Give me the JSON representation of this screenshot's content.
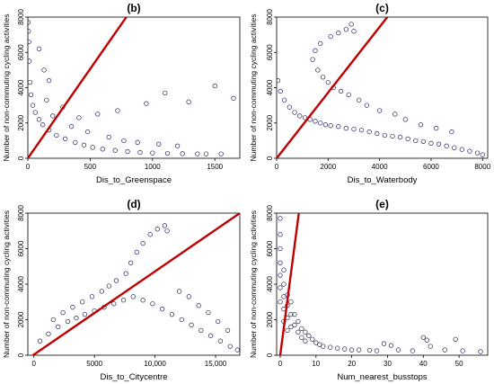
{
  "chart_data": [
    {
      "type": "scatter",
      "title": "(b)",
      "xlabel": "Dis_to_Greenspace",
      "ylabel": "Number of non-commuting cycling activities",
      "xlim": [
        0,
        1700
      ],
      "ylim": [
        0,
        8000
      ],
      "xticks": [
        0,
        500,
        1000,
        1500
      ],
      "xtick_labels": [
        "0",
        "500",
        "1000",
        "1500"
      ],
      "yticks": [
        0,
        2000,
        4000,
        6000,
        8000
      ],
      "ytick_labels": [
        "0",
        "2000",
        "4000",
        "6000",
        "8000"
      ],
      "grid": false,
      "series_color": "#1f1fd6",
      "point_edge_color": "#20205a",
      "trendline": {
        "color": "#c00000",
        "x": [
          0,
          790
        ],
        "y": [
          0,
          8000
        ]
      },
      "points": [
        [
          3,
          7700
        ],
        [
          5,
          7200
        ],
        [
          8,
          6600
        ],
        [
          12,
          5500
        ],
        [
          18,
          4300
        ],
        [
          25,
          3600
        ],
        [
          40,
          3000
        ],
        [
          60,
          2600
        ],
        [
          90,
          2200
        ],
        [
          120,
          1900
        ],
        [
          170,
          1600
        ],
        [
          230,
          1300
        ],
        [
          300,
          1100
        ],
        [
          380,
          900
        ],
        [
          450,
          750
        ],
        [
          520,
          620
        ],
        [
          600,
          520
        ],
        [
          700,
          450
        ],
        [
          800,
          380
        ],
        [
          900,
          330
        ],
        [
          1000,
          300
        ],
        [
          1120,
          280
        ],
        [
          1240,
          260
        ],
        [
          1360,
          250
        ],
        [
          1430,
          250
        ],
        [
          1550,
          250
        ],
        [
          1650,
          3400
        ],
        [
          1500,
          4100
        ],
        [
          1290,
          3200
        ],
        [
          1100,
          3700
        ],
        [
          950,
          3100
        ],
        [
          720,
          2700
        ],
        [
          560,
          2500
        ],
        [
          410,
          2300
        ],
        [
          280,
          2900
        ],
        [
          130,
          5000
        ],
        [
          170,
          4400
        ],
        [
          90,
          6200
        ],
        [
          150,
          3300
        ],
        [
          200,
          2400
        ],
        [
          350,
          1800
        ],
        [
          480,
          1500
        ],
        [
          650,
          1200
        ],
        [
          770,
          1000
        ],
        [
          880,
          900
        ],
        [
          1050,
          800
        ],
        [
          1200,
          700
        ]
      ]
    },
    {
      "type": "scatter",
      "title": "(c)",
      "xlabel": "Dis_to_Waterbody",
      "ylabel": "Number of non-commuting cycling activities",
      "xlim": [
        0,
        8200
      ],
      "ylim": [
        0,
        8000
      ],
      "xticks": [
        0,
        2000,
        4000,
        6000,
        8000
      ],
      "xtick_labels": [
        "0",
        "2000",
        "4000",
        "6000",
        "8000"
      ],
      "yticks": [
        0,
        2000,
        4000,
        6000,
        8000
      ],
      "ytick_labels": [
        "0",
        "2000",
        "4000",
        "6000",
        "8000"
      ],
      "grid": false,
      "series_color": "#1f1fd6",
      "point_edge_color": "#20205a",
      "trendline": {
        "color": "#c00000",
        "x": [
          0,
          4300
        ],
        "y": [
          0,
          8000
        ]
      },
      "points": [
        [
          50,
          4400
        ],
        [
          150,
          3800
        ],
        [
          300,
          3300
        ],
        [
          500,
          2900
        ],
        [
          700,
          2600
        ],
        [
          900,
          2400
        ],
        [
          1100,
          2300
        ],
        [
          1300,
          2200
        ],
        [
          1500,
          2100
        ],
        [
          1700,
          2000
        ],
        [
          1900,
          1900
        ],
        [
          2100,
          1850
        ],
        [
          2400,
          1800
        ],
        [
          2700,
          1700
        ],
        [
          3000,
          1650
        ],
        [
          3300,
          1600
        ],
        [
          3600,
          1500
        ],
        [
          3900,
          1400
        ],
        [
          4200,
          1300
        ],
        [
          4500,
          1250
        ],
        [
          4800,
          1200
        ],
        [
          5100,
          1100
        ],
        [
          5400,
          1000
        ],
        [
          5700,
          950
        ],
        [
          6000,
          850
        ],
        [
          6300,
          800
        ],
        [
          6600,
          700
        ],
        [
          6900,
          600
        ],
        [
          7200,
          500
        ],
        [
          7500,
          400
        ],
        [
          7800,
          300
        ],
        [
          8000,
          200
        ],
        [
          1400,
          5600
        ],
        [
          1500,
          6100
        ],
        [
          1700,
          6500
        ],
        [
          2100,
          6900
        ],
        [
          2400,
          7100
        ],
        [
          2700,
          7300
        ],
        [
          2900,
          7600
        ],
        [
          3000,
          7200
        ],
        [
          1600,
          5000
        ],
        [
          1800,
          4600
        ],
        [
          2000,
          4300
        ],
        [
          2200,
          4000
        ],
        [
          2500,
          3800
        ],
        [
          2800,
          3600
        ],
        [
          3200,
          3300
        ],
        [
          3500,
          3000
        ],
        [
          4000,
          2700
        ],
        [
          4600,
          2500
        ],
        [
          5000,
          2200
        ],
        [
          5600,
          1900
        ],
        [
          6200,
          1700
        ],
        [
          6800,
          1500
        ]
      ]
    },
    {
      "type": "scatter",
      "title": "(d)",
      "xlabel": "Dis_to_Citycentre",
      "ylabel": "Number of non-commuting cycling activities",
      "xlim": [
        -500,
        17000
      ],
      "ylim": [
        0,
        8000
      ],
      "xticks": [
        0,
        5000,
        10000,
        15000
      ],
      "xtick_labels": [
        "0",
        "5000",
        "10,000",
        "15,000"
      ],
      "yticks": [
        0,
        2000,
        4000,
        6000,
        8000
      ],
      "ytick_labels": [
        "0",
        "2000",
        "4000",
        "6000",
        "8000"
      ],
      "grid": false,
      "series_color": "#1f1fd6",
      "point_edge_color": "#20205a",
      "trendline": {
        "color": "#c00000",
        "x": [
          -500,
          17000
        ],
        "y": [
          -200,
          8000
        ]
      },
      "points": [
        [
          500,
          800
        ],
        [
          1200,
          1200
        ],
        [
          2000,
          1600
        ],
        [
          2800,
          1900
        ],
        [
          3500,
          2100
        ],
        [
          4200,
          2300
        ],
        [
          5000,
          2500
        ],
        [
          5800,
          2700
        ],
        [
          6600,
          2900
        ],
        [
          7400,
          3100
        ],
        [
          8200,
          3300
        ],
        [
          9000,
          3100
        ],
        [
          9800,
          2900
        ],
        [
          10600,
          2600
        ],
        [
          11400,
          2300
        ],
        [
          12200,
          2000
        ],
        [
          13000,
          1700
        ],
        [
          13800,
          1400
        ],
        [
          14600,
          1100
        ],
        [
          15400,
          800
        ],
        [
          16200,
          500
        ],
        [
          16800,
          300
        ],
        [
          8000,
          5200
        ],
        [
          8500,
          5800
        ],
        [
          9000,
          6300
        ],
        [
          9600,
          6800
        ],
        [
          10200,
          7100
        ],
        [
          10800,
          7300
        ],
        [
          11000,
          7000
        ],
        [
          7600,
          4600
        ],
        [
          6800,
          4200
        ],
        [
          6200,
          3900
        ],
        [
          5600,
          3600
        ],
        [
          4800,
          3300
        ],
        [
          4000,
          3000
        ],
        [
          3200,
          2700
        ],
        [
          2400,
          2400
        ],
        [
          1600,
          2000
        ],
        [
          12000,
          3600
        ],
        [
          12800,
          3300
        ],
        [
          13600,
          2800
        ],
        [
          14400,
          2400
        ],
        [
          15200,
          1900
        ],
        [
          16000,
          1400
        ]
      ]
    },
    {
      "type": "scatter",
      "title": "(e)",
      "xlabel": "Num_nearest_busstops",
      "ylabel": "Number of non-commuting cycling activities",
      "xlim": [
        -1,
        58
      ],
      "ylim": [
        0,
        8000
      ],
      "xticks": [
        0,
        10,
        20,
        30,
        40,
        50
      ],
      "xtick_labels": [
        "0",
        "10",
        "20",
        "30",
        "40",
        "50"
      ],
      "yticks": [
        0,
        2000,
        4000,
        6000,
        8000
      ],
      "ytick_labels": [
        "0",
        "2000",
        "4000",
        "6000",
        "8000"
      ],
      "grid": false,
      "series_color": "#1f1fd6",
      "point_edge_color": "#20205a",
      "trendline": {
        "color": "#c00000",
        "x": [
          0,
          5.2
        ],
        "y": [
          0,
          8000
        ]
      },
      "points": [
        [
          0,
          7700
        ],
        [
          0,
          6800
        ],
        [
          0,
          6000
        ],
        [
          0,
          5200
        ],
        [
          0,
          4500
        ],
        [
          0,
          3800
        ],
        [
          0,
          3000
        ],
        [
          1,
          4800
        ],
        [
          1,
          4000
        ],
        [
          1,
          3300
        ],
        [
          1,
          2600
        ],
        [
          1,
          1900
        ],
        [
          2,
          3400
        ],
        [
          2,
          2800
        ],
        [
          2,
          2100
        ],
        [
          2,
          1400
        ],
        [
          3,
          3000
        ],
        [
          3,
          2300
        ],
        [
          3,
          1600
        ],
        [
          4,
          2300
        ],
        [
          4,
          1700
        ],
        [
          5,
          1900
        ],
        [
          5,
          1300
        ],
        [
          6,
          1500
        ],
        [
          6,
          1000
        ],
        [
          7,
          1300
        ],
        [
          7,
          800
        ],
        [
          8,
          1100
        ],
        [
          9,
          900
        ],
        [
          10,
          700
        ],
        [
          11,
          600
        ],
        [
          12,
          500
        ],
        [
          14,
          450
        ],
        [
          16,
          400
        ],
        [
          18,
          350
        ],
        [
          20,
          300
        ],
        [
          22,
          300
        ],
        [
          25,
          280
        ],
        [
          27,
          250
        ],
        [
          29,
          650
        ],
        [
          31,
          550
        ],
        [
          33,
          300
        ],
        [
          37,
          250
        ],
        [
          40,
          1000
        ],
        [
          41,
          850
        ],
        [
          42,
          500
        ],
        [
          46,
          300
        ],
        [
          49,
          900
        ],
        [
          51,
          250
        ],
        [
          56,
          200
        ]
      ]
    }
  ]
}
